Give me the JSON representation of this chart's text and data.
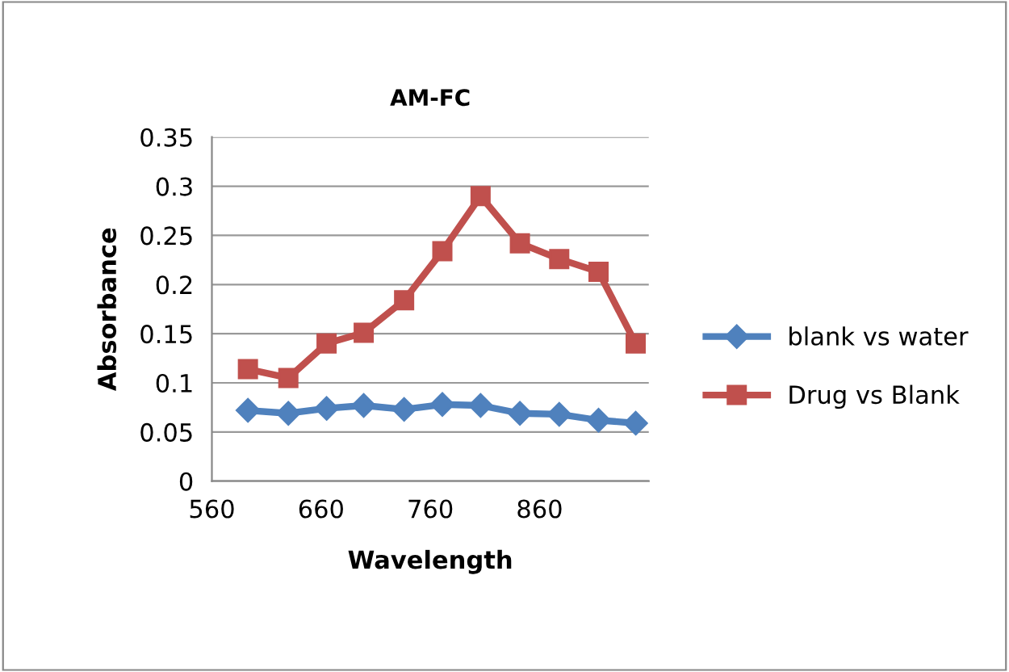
{
  "chart_data": {
    "type": "line",
    "title": "AM-FC",
    "xlabel": "Wavelength",
    "ylabel": "Absorbance",
    "x": [
      593,
      630,
      665,
      699,
      736,
      771,
      806,
      842,
      878,
      914,
      948
    ],
    "series": [
      {
        "name": "blank vs water",
        "color": "#4f81bd",
        "marker": "diamond",
        "values": [
          0.072,
          0.069,
          0.074,
          0.077,
          0.073,
          0.078,
          0.077,
          0.069,
          0.068,
          0.062,
          0.059
        ]
      },
      {
        "name": "Drug vs Blank",
        "color": "#c0504d",
        "marker": "square",
        "values": [
          0.114,
          0.105,
          0.14,
          0.151,
          0.184,
          0.234,
          0.29,
          0.242,
          0.226,
          0.213,
          0.14
        ]
      }
    ],
    "xlim": [
      560,
      960
    ],
    "xticks": [
      560,
      660,
      760,
      860
    ],
    "ylim": [
      0,
      0.35
    ],
    "yticks": [
      0,
      0.05,
      0.1,
      0.15,
      0.2,
      0.25,
      0.3,
      0.35
    ],
    "grid": "y",
    "legend": "right",
    "line_style": "solid"
  }
}
